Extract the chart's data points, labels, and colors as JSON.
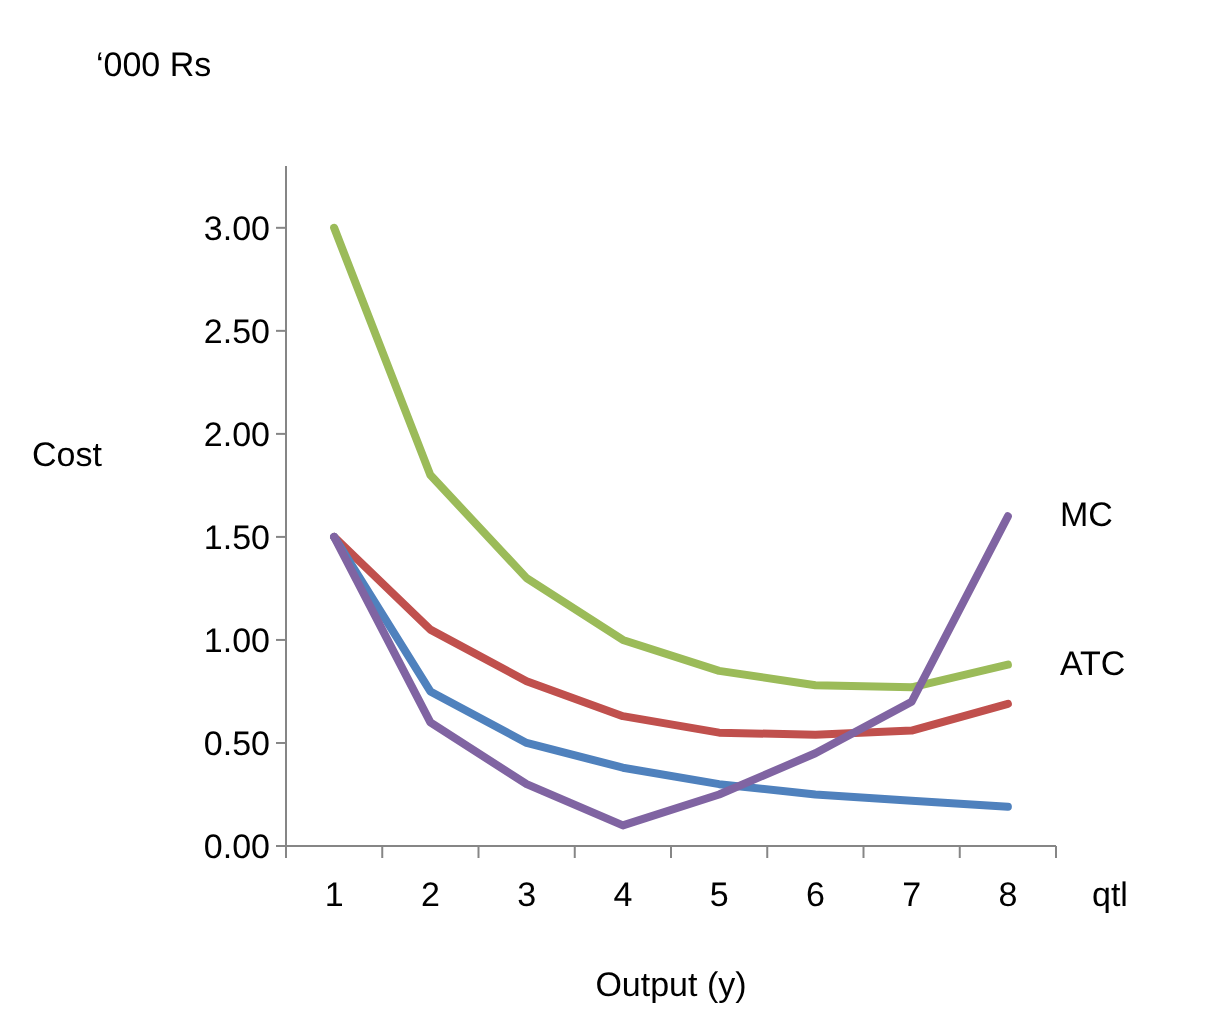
{
  "chart_data": {
    "type": "line",
    "xlabel": "Output (y)",
    "ylabel": "Cost",
    "annotations": [
      "‘000 Rs",
      "qtl"
    ],
    "categories": [
      "1",
      "2",
      "3",
      "4",
      "5",
      "6",
      "7",
      "8"
    ],
    "ylim": [
      0,
      3.3
    ],
    "yticks": [
      {
        "value": 0,
        "label": "0.00"
      },
      {
        "value": 0.5,
        "label": "0.50"
      },
      {
        "value": 1,
        "label": "1.00"
      },
      {
        "value": 1.5,
        "label": "1.50"
      },
      {
        "value": 2,
        "label": "2.00"
      },
      {
        "value": 2.5,
        "label": "2.50"
      },
      {
        "value": 3,
        "label": "3.00"
      }
    ],
    "grid": false,
    "legend": false,
    "marker": "none",
    "line_style": "solid",
    "series": [
      {
        "name": "ATC",
        "color": "#9bbb59",
        "values": [
          3.0,
          1.8,
          1.3,
          1.0,
          0.85,
          0.78,
          0.77,
          0.88
        ]
      },
      {
        "color": "#c0504d",
        "values": [
          1.5,
          1.05,
          0.8,
          0.63,
          0.55,
          0.54,
          0.56,
          0.69
        ]
      },
      {
        "color": "#4f81bd",
        "values": [
          1.5,
          0.75,
          0.5,
          0.38,
          0.3,
          0.25,
          0.22,
          0.19
        ]
      },
      {
        "name": "MC",
        "color": "#8064a2",
        "values": [
          1.5,
          0.6,
          0.3,
          0.1,
          0.25,
          0.45,
          0.7,
          1.6
        ]
      }
    ]
  }
}
